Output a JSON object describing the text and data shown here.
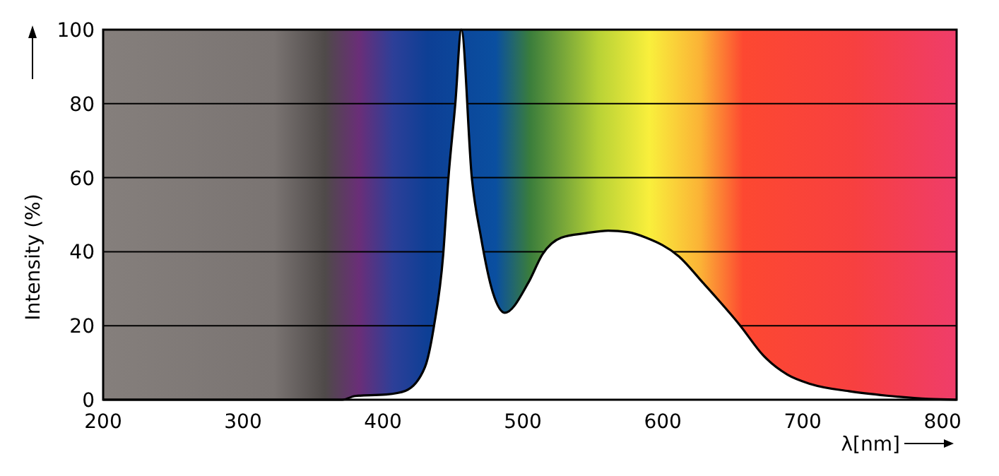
{
  "chart_data": {
    "type": "area",
    "xlabel": "λ[nm]",
    "ylabel": "Intensity (%)",
    "x": [
      200,
      371,
      380,
      402,
      416,
      430,
      436.5,
      443,
      446.6,
      451.7,
      456,
      463.5,
      470,
      478.5,
      487,
      504,
      514,
      527.5,
      545,
      561,
      575,
      588,
      611.6,
      628.5,
      655,
      672,
      689,
      706,
      733,
      760,
      790,
      810
    ],
    "series": [
      {
        "color": "#ffffff",
        "values": [
          0,
          0,
          1,
          1.4,
          2.4,
          8.8,
          20,
          39,
          59,
          80,
          100,
          60,
          44,
          29,
          23.5,
          31.7,
          39.3,
          43.8,
          45,
          45.7,
          45.3,
          43.8,
          38.7,
          31.7,
          20.2,
          11.9,
          6.8,
          4.2,
          2.3,
          1.1,
          0.2,
          0
        ]
      }
    ],
    "xlim": [
      200,
      810
    ],
    "ylim": [
      0,
      100
    ],
    "xticks": [
      200,
      300,
      400,
      500,
      600,
      700,
      800
    ],
    "yticks": [
      0,
      20,
      40,
      60,
      80,
      100
    ],
    "grid": "y"
  }
}
